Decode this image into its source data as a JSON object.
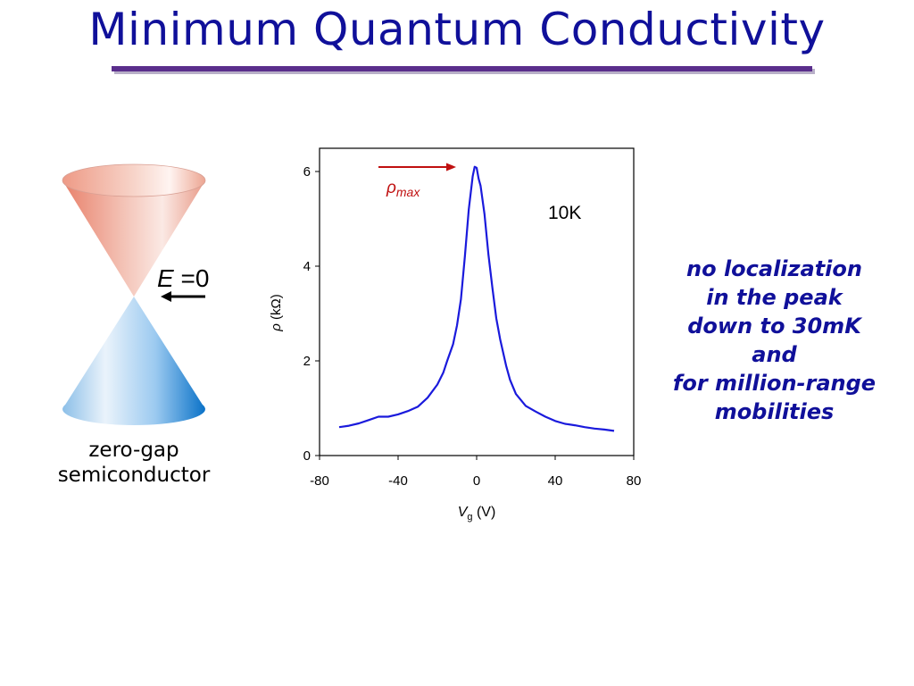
{
  "slide": {
    "title": "Minimum Quantum Conductivity"
  },
  "cone": {
    "energy_label_italic": "E",
    "energy_label_rest": " =0",
    "caption_line1": "zero-gap",
    "caption_line2": "semiconductor"
  },
  "note": {
    "lines": [
      "no localization",
      "in the peak",
      "down to 30mK",
      "and",
      "for million-range",
      "mobilities"
    ]
  },
  "colors": {
    "title": "#10109a",
    "rule": "#5a2e8c",
    "curve": "#1a1adc",
    "arrow": "#c01010",
    "cone_top": "#e8806a",
    "cone_bottom": "#1f7fd0"
  },
  "chart_data": {
    "type": "line",
    "title": "",
    "xlabel": "V_g (V)",
    "ylabel": "ρ (kΩ)",
    "xlim": [
      -80,
      80
    ],
    "ylim": [
      0,
      6.2
    ],
    "xticks": [
      "-80",
      "-40",
      "0",
      "40",
      "80"
    ],
    "yticks": [
      "0",
      "2",
      "4",
      "6"
    ],
    "annotations": {
      "rho_max_symbol": "ρ",
      "rho_max_sub": "max",
      "temperature": "10K"
    },
    "series": [
      {
        "x": [
          -70,
          -65,
          -60,
          -55,
          -50,
          -45,
          -40,
          -35,
          -30,
          -25,
          -20,
          -17,
          -15,
          -12,
          -10,
          -8,
          -6,
          -4,
          -2,
          -1,
          0,
          1,
          2,
          4,
          6,
          8,
          10,
          12,
          15,
          17,
          20,
          25,
          30,
          35,
          40,
          45,
          50,
          55,
          60,
          65,
          70
        ],
        "y": [
          0.6,
          0.63,
          0.68,
          0.75,
          0.82,
          0.82,
          0.87,
          0.94,
          1.03,
          1.22,
          1.5,
          1.75,
          2.0,
          2.35,
          2.75,
          3.3,
          4.2,
          5.2,
          5.9,
          6.1,
          6.08,
          5.85,
          5.7,
          5.1,
          4.25,
          3.55,
          2.9,
          2.45,
          1.9,
          1.6,
          1.3,
          1.05,
          0.93,
          0.82,
          0.73,
          0.67,
          0.64,
          0.6,
          0.57,
          0.55,
          0.52
        ]
      }
    ]
  }
}
